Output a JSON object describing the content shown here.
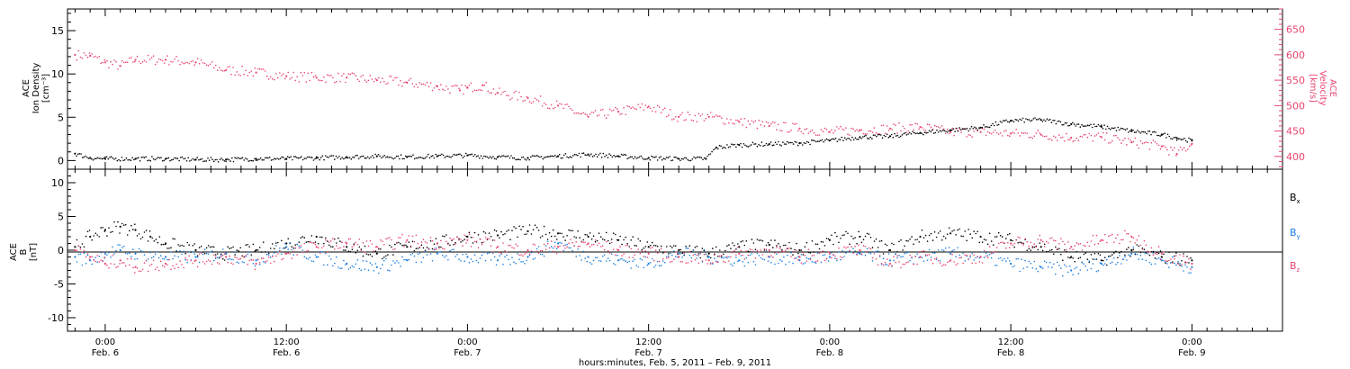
{
  "colors": {
    "black": "#000000",
    "pink": "#e8456e",
    "blue": "#1a7ee0"
  },
  "chart_data": [
    {
      "type": "scatter",
      "panel": "top",
      "ylabel_left": [
        "ACE",
        "Ion Density",
        "[cm⁻³]"
      ],
      "ylabel_right": [
        "ACE",
        "Velocity",
        "[km/s]"
      ],
      "ylim_left": [
        -1,
        17.5
      ],
      "ylim_right": [
        375,
        690
      ],
      "yticks_left": [
        "0",
        "5",
        "10",
        "15"
      ],
      "yticks_right": [
        "400",
        "450",
        "500",
        "550",
        "600",
        "650"
      ],
      "grid": false,
      "series": [
        {
          "axis": "left",
          "color": "black",
          "points": [
            [
              -2,
              0.8
            ],
            [
              -1,
              0.3
            ],
            [
              0,
              0.2
            ],
            [
              2,
              0.2
            ],
            [
              4,
              0.2
            ],
            [
              6,
              0.1
            ],
            [
              8,
              0.1
            ],
            [
              10,
              0.2
            ],
            [
              12,
              0.2
            ],
            [
              14,
              0.3
            ],
            [
              16,
              0.4
            ],
            [
              18,
              0.5
            ],
            [
              20,
              0.4
            ],
            [
              22,
              0.5
            ],
            [
              24,
              0.6
            ],
            [
              26,
              0.4
            ],
            [
              28,
              0.3
            ],
            [
              30,
              0.5
            ],
            [
              32,
              0.7
            ],
            [
              34,
              0.5
            ],
            [
              36,
              0.3
            ],
            [
              38,
              0.2
            ],
            [
              39.8,
              0.2
            ],
            [
              40.5,
              1.5
            ],
            [
              42,
              1.8
            ],
            [
              44,
              1.9
            ],
            [
              46,
              2.0
            ],
            [
              48,
              2.3
            ],
            [
              50,
              2.7
            ],
            [
              52,
              2.8
            ],
            [
              54,
              3.2
            ],
            [
              56,
              3.5
            ],
            [
              58,
              3.8
            ],
            [
              60,
              4.6
            ],
            [
              62,
              4.7
            ],
            [
              64,
              4.2
            ],
            [
              66,
              3.9
            ],
            [
              68,
              3.4
            ],
            [
              70,
              3.0
            ],
            [
              71,
              2.6
            ],
            [
              72,
              2.3
            ]
          ]
        },
        {
          "axis": "right",
          "color": "pink",
          "points": [
            [
              -2,
              600
            ],
            [
              -1,
              598
            ],
            [
              0,
              585
            ],
            [
              1,
              578
            ],
            [
              2,
              590
            ],
            [
              4,
              590
            ],
            [
              6,
              585
            ],
            [
              8,
              570
            ],
            [
              10,
              565
            ],
            [
              12,
              558
            ],
            [
              14,
              555
            ],
            [
              16,
              555
            ],
            [
              18,
              550
            ],
            [
              20,
              545
            ],
            [
              22,
              538
            ],
            [
              23.5,
              530
            ],
            [
              24,
              535
            ],
            [
              25,
              540
            ],
            [
              26,
              525
            ],
            [
              28,
              515
            ],
            [
              30,
              500
            ],
            [
              32,
              478
            ],
            [
              34,
              488
            ],
            [
              36,
              498
            ],
            [
              38,
              478
            ],
            [
              40,
              478
            ],
            [
              42,
              468
            ],
            [
              44,
              460
            ],
            [
              46,
              455
            ],
            [
              48,
              448
            ],
            [
              50,
              452
            ],
            [
              52,
              455
            ],
            [
              54,
              458
            ],
            [
              56,
              448
            ],
            [
              58,
              448
            ],
            [
              60,
              445
            ],
            [
              62,
              443
            ],
            [
              64,
              437
            ],
            [
              66,
              438
            ],
            [
              68,
              428
            ],
            [
              70,
              420
            ],
            [
              71,
              405
            ],
            [
              72,
              425
            ]
          ]
        }
      ]
    },
    {
      "type": "scatter",
      "panel": "bottom",
      "ylabel_left": [
        "ACE",
        "B",
        "[nT]"
      ],
      "ylim": [
        -12,
        12
      ],
      "yticks": [
        "-10",
        "-5",
        "0",
        "5",
        "10"
      ],
      "zero_line": true,
      "legend_position": "right",
      "series": [
        {
          "name": "Bₓ",
          "color": "black",
          "points": [
            [
              -2,
              0.5
            ],
            [
              -1,
              2.0
            ],
            [
              0,
              3.0
            ],
            [
              1,
              3.5
            ],
            [
              2,
              3.0
            ],
            [
              3,
              2.0
            ],
            [
              4,
              1.0
            ],
            [
              6,
              0.0
            ],
            [
              8,
              -0.5
            ],
            [
              10,
              0.0
            ],
            [
              12,
              1.0
            ],
            [
              14,
              2.0
            ],
            [
              16,
              0.5
            ],
            [
              18,
              -0.5
            ],
            [
              20,
              0.5
            ],
            [
              22,
              1.0
            ],
            [
              24,
              2.0
            ],
            [
              26,
              2.2
            ],
            [
              28,
              2.8
            ],
            [
              30,
              2.5
            ],
            [
              32,
              2.0
            ],
            [
              34,
              1.5
            ],
            [
              36,
              0.5
            ],
            [
              38,
              0.0
            ],
            [
              40,
              -0.5
            ],
            [
              42,
              0.5
            ],
            [
              44,
              0.8
            ],
            [
              46,
              0.0
            ],
            [
              48,
              1.5
            ],
            [
              50,
              2.0
            ],
            [
              52,
              0.0
            ],
            [
              54,
              2.0
            ],
            [
              56,
              2.5
            ],
            [
              58,
              2.0
            ],
            [
              60,
              1.5
            ],
            [
              62,
              0.5
            ],
            [
              64,
              -1.0
            ],
            [
              66,
              -1.5
            ],
            [
              68,
              0.0
            ],
            [
              70,
              -1.0
            ],
            [
              72,
              -1.5
            ]
          ]
        },
        {
          "name": "Bᵧ",
          "color": "blue",
          "points": [
            [
              -2,
              -1.0
            ],
            [
              -1,
              -1.5
            ],
            [
              0,
              -0.5
            ],
            [
              1,
              0.0
            ],
            [
              2,
              -0.5
            ],
            [
              4,
              -1.0
            ],
            [
              6,
              -1.0
            ],
            [
              8,
              -0.5
            ],
            [
              10,
              -1.5
            ],
            [
              12,
              0.5
            ],
            [
              14,
              -1.0
            ],
            [
              16,
              -2.0
            ],
            [
              18,
              -2.5
            ],
            [
              20,
              -1.5
            ],
            [
              22,
              -0.5
            ],
            [
              24,
              -1.0
            ],
            [
              26,
              -1.5
            ],
            [
              28,
              -1.0
            ],
            [
              30,
              1.0
            ],
            [
              32,
              -1.0
            ],
            [
              34,
              -1.5
            ],
            [
              36,
              -2.0
            ],
            [
              38,
              -0.5
            ],
            [
              40,
              -1.0
            ],
            [
              42,
              -1.5
            ],
            [
              44,
              -1.0
            ],
            [
              46,
              -1.5
            ],
            [
              48,
              -1.0
            ],
            [
              50,
              -0.5
            ],
            [
              52,
              -1.5
            ],
            [
              54,
              -1.0
            ],
            [
              56,
              -0.5
            ],
            [
              58,
              -1.0
            ],
            [
              60,
              -2.0
            ],
            [
              62,
              -2.5
            ],
            [
              64,
              -3.0
            ],
            [
              66,
              -2.0
            ],
            [
              68,
              -0.5
            ],
            [
              70,
              -1.5
            ],
            [
              72,
              -2.5
            ]
          ]
        },
        {
          "name": "B_z",
          "color": "pink",
          "points": [
            [
              -2,
              0.0
            ],
            [
              -1,
              -1.0
            ],
            [
              0,
              -2.0
            ],
            [
              1,
              -1.5
            ],
            [
              2,
              -2.5
            ],
            [
              4,
              -2.0
            ],
            [
              6,
              -1.5
            ],
            [
              8,
              -1.0
            ],
            [
              10,
              -2.0
            ],
            [
              12,
              -0.5
            ],
            [
              14,
              0.5
            ],
            [
              16,
              1.0
            ],
            [
              18,
              0.5
            ],
            [
              20,
              1.5
            ],
            [
              22,
              1.0
            ],
            [
              24,
              1.5
            ],
            [
              26,
              0.5
            ],
            [
              28,
              0.0
            ],
            [
              30,
              0.5
            ],
            [
              32,
              1.0
            ],
            [
              34,
              0.0
            ],
            [
              36,
              -0.5
            ],
            [
              38,
              -1.0
            ],
            [
              40,
              -1.5
            ],
            [
              42,
              -0.5
            ],
            [
              44,
              0.0
            ],
            [
              46,
              -1.0
            ],
            [
              48,
              -0.5
            ],
            [
              50,
              0.0
            ],
            [
              52,
              -2.0
            ],
            [
              54,
              -1.0
            ],
            [
              56,
              -1.5
            ],
            [
              58,
              -1.0
            ],
            [
              60,
              1.0
            ],
            [
              62,
              1.5
            ],
            [
              64,
              0.5
            ],
            [
              66,
              1.5
            ],
            [
              68,
              2.0
            ],
            [
              70,
              -0.5
            ],
            [
              72,
              -2.0
            ]
          ]
        }
      ]
    }
  ],
  "x_axis": {
    "ticks": [
      {
        "hour": 0,
        "time": "0:00",
        "date": "Feb. 6"
      },
      {
        "hour": 12,
        "time": "12:00",
        "date": "Feb. 6"
      },
      {
        "hour": 24,
        "time": "0:00",
        "date": "Feb. 7"
      },
      {
        "hour": 36,
        "time": "12:00",
        "date": "Feb. 7"
      },
      {
        "hour": 48,
        "time": "0:00",
        "date": "Feb. 8"
      },
      {
        "hour": 60,
        "time": "12:00",
        "date": "Feb. 8"
      },
      {
        "hour": 72,
        "time": "0:00",
        "date": "Feb. 9"
      }
    ],
    "xlim": [
      -2.5,
      78
    ],
    "label": "hours:minutes, Feb.  5, 2011 – Feb.  9, 2011"
  },
  "legend": {
    "bx": "B",
    "bx_sub": "x",
    "by": "B",
    "by_sub": "y",
    "bz": "B",
    "bz_sub": "z"
  }
}
